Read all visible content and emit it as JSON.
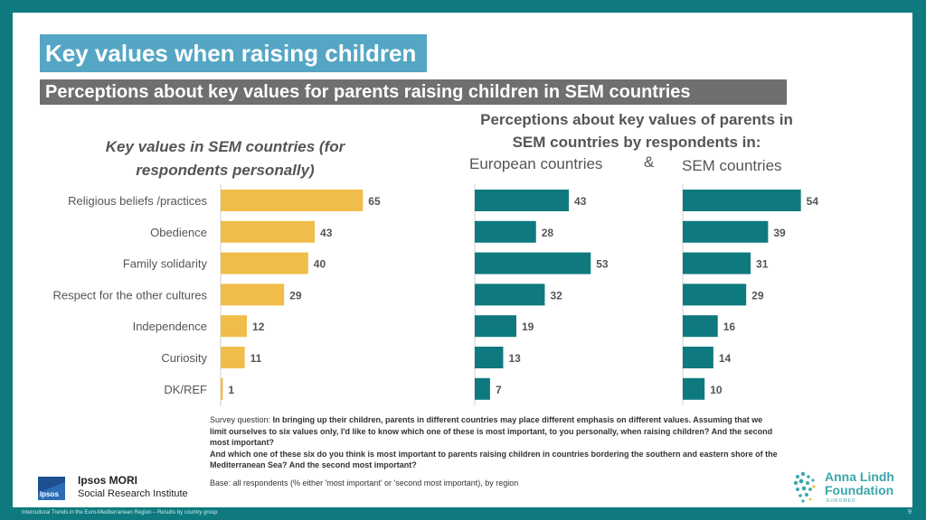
{
  "title": "Key values when raising children",
  "subtitle": "Perceptions about key values for parents raising children in SEM countries",
  "left_heading": "Key values in SEM countries (for respondents personally)",
  "right_heading": "Perceptions about key values of parents in SEM countries by respondents in:",
  "region_european": "European countries",
  "amp": "&",
  "region_sem": "SEM countries",
  "chart_data": {
    "type": "bar",
    "orientation": "horizontal",
    "categories": [
      "Religious beliefs /practices",
      "Obedience",
      "Family solidarity",
      "Respect for the other cultures",
      "Independence",
      "Curiosity",
      "DK/REF"
    ],
    "series": [
      {
        "name": "Key values in SEM countries (for respondents personally)",
        "color": "#f0bd4a",
        "values": [
          65,
          43,
          40,
          29,
          12,
          11,
          1
        ]
      },
      {
        "name": "European countries",
        "color": "#0e7a80",
        "values": [
          43,
          28,
          53,
          32,
          19,
          13,
          7
        ]
      },
      {
        "name": "SEM countries",
        "color": "#0e7a80",
        "values": [
          54,
          39,
          31,
          29,
          16,
          14,
          10
        ]
      }
    ],
    "xlim": [
      0,
      100
    ]
  },
  "footnote": {
    "label": "Survey question: ",
    "q1": "In bringing up their children, parents in different countries may place different emphasis on different values. Assuming that we limit ourselves to six values only, I'd like to know which one of these is most important, to you personally, when raising children? And the second most important?",
    "q2": "And which one of these six do you think is most important to parents raising children in countries bordering the southern and eastern shore of the Mediterranean Sea? And the second most important?",
    "base": "Base: all respondents (% either 'most important' or 'second most important), by region"
  },
  "ipsos": {
    "logo_text": "Ipsos",
    "name": "Ipsos MORI",
    "institute": "Social Research Institute"
  },
  "anna": {
    "line1": "Anna Lindh",
    "line2": "Foundation",
    "tag": "EUROMED"
  },
  "bottom_text": "Intercultural Trends in the Euro-Mediterranean Region – Results by country group",
  "page_number": "9",
  "colors": {
    "teal": "#0e7a80",
    "yellow": "#f0bd4a",
    "title_bg": "#55a6c4",
    "subtitle_bg": "#6f6f6f"
  }
}
